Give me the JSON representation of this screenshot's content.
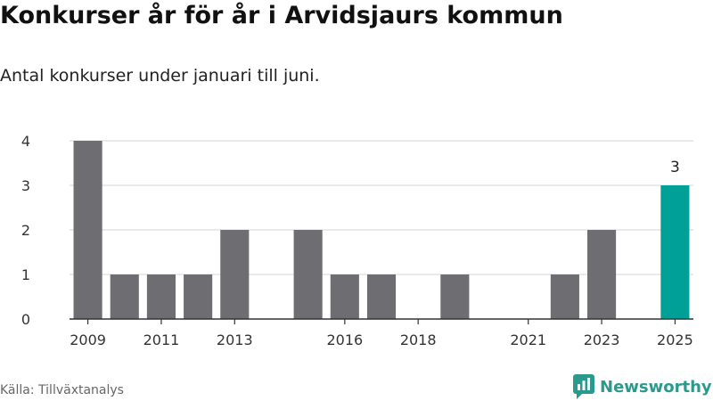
{
  "header": {
    "title": "Konkurser år för år i Arvidsjaurs kommun",
    "subtitle": "Antal konkurser under januari till juni."
  },
  "footer": {
    "source": "Källa: Tillväxtanalys",
    "brand": "Newsworthy"
  },
  "colors": {
    "bar_default": "#6e6d72",
    "bar_highlight": "#00a096",
    "grid": "#dddddd",
    "axis": "#333333",
    "brand": "#2a9a8f"
  },
  "chart_data": {
    "type": "bar",
    "categories": [
      "2009",
      "2010",
      "2011",
      "2012",
      "2013",
      "2014",
      "2015",
      "2016",
      "2017",
      "2018",
      "2019",
      "2020",
      "2021",
      "2022",
      "2023",
      "2024",
      "2025"
    ],
    "values": [
      4,
      1,
      1,
      1,
      2,
      0,
      2,
      1,
      1,
      0,
      1,
      0,
      0,
      1,
      2,
      0,
      3
    ],
    "highlight_category": "2025",
    "data_labels": [
      {
        "category": "2025",
        "text": "3"
      }
    ],
    "x_tick_labels": [
      "2009",
      "2011",
      "2013",
      "2016",
      "2018",
      "2021",
      "2023",
      "2025"
    ],
    "y_ticks": [
      0,
      1,
      2,
      3,
      4
    ],
    "ylim": [
      0,
      4
    ],
    "grid": true,
    "xlabel": "",
    "ylabel": ""
  }
}
